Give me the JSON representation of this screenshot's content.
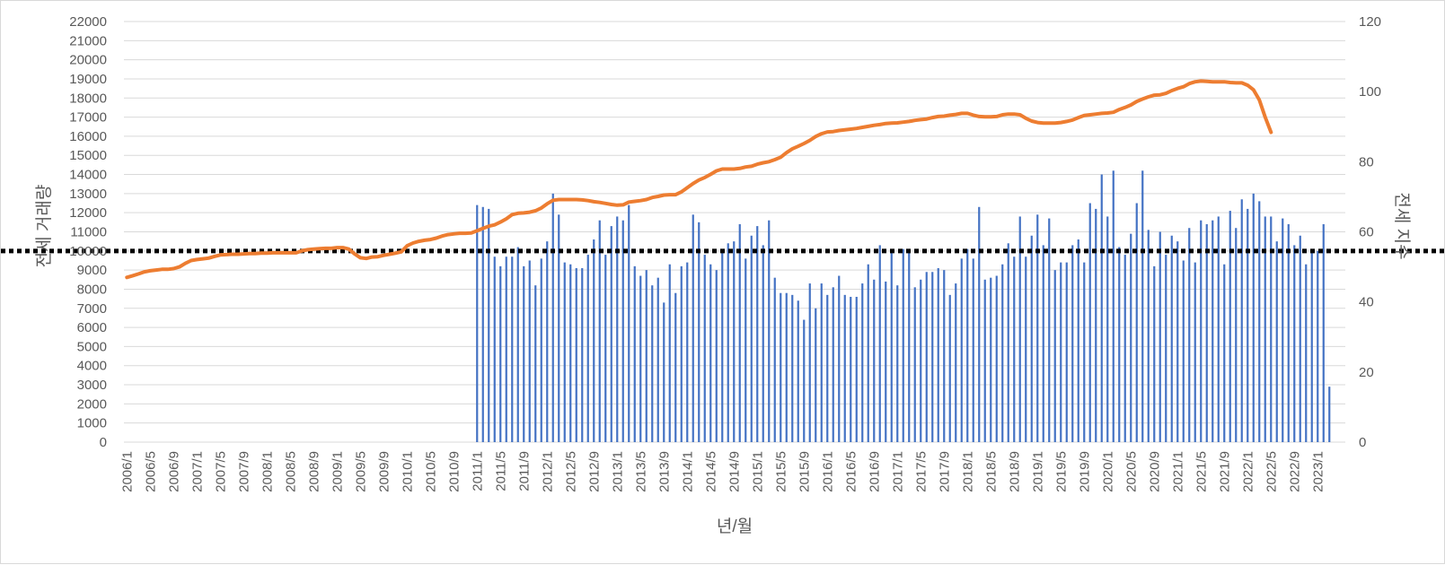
{
  "chart_data": {
    "type": "bar",
    "title": "",
    "xlabel": "년/월",
    "ylabel_left": "전세 거래량",
    "ylabel_right": "전세 지수",
    "ylim_left": [
      0,
      22000
    ],
    "ylim_right": [
      0,
      120
    ],
    "yticks_left": [
      "0",
      "1000",
      "2000",
      "3000",
      "4000",
      "5000",
      "6000",
      "7000",
      "8000",
      "9000",
      "10000",
      "11000",
      "12000",
      "13000",
      "14000",
      "15000",
      "16000",
      "17000",
      "18000",
      "19000",
      "20000",
      "21000",
      "22000"
    ],
    "yticks_right": [
      "0",
      "20",
      "40",
      "60",
      "80",
      "100",
      "120"
    ],
    "x_tick_labels": [
      "2006/1",
      "2006/5",
      "2006/9",
      "2007/1",
      "2007/5",
      "2007/9",
      "2008/1",
      "2008/5",
      "2008/9",
      "2009/1",
      "2009/5",
      "2009/9",
      "2010/1",
      "2010/5",
      "2010/9",
      "2011/1",
      "2011/5",
      "2011/9",
      "2012/1",
      "2012/5",
      "2012/9",
      "2013/1",
      "2013/5",
      "2013/9",
      "2014/1",
      "2014/5",
      "2014/9",
      "2015/1",
      "2015/5",
      "2015/9",
      "2016/1",
      "2016/5",
      "2016/9",
      "2017/1",
      "2017/5",
      "2017/9",
      "2018/1",
      "2018/5",
      "2018/9",
      "2019/1",
      "2019/5",
      "2019/9",
      "2020/1",
      "2020/5",
      "2020/9",
      "2021/1",
      "2021/5",
      "2021/9",
      "2022/1",
      "2022/5",
      "2022/9",
      "2023/1"
    ],
    "first_month": "2006/1",
    "grid": true,
    "reference_line_left": 10000,
    "colors": {
      "bars": "#4472c4",
      "line": "#ed7d31",
      "grid": "#d9d9d9",
      "reference": "#000000"
    },
    "series": [
      {
        "kind": "bar",
        "axis": "left",
        "start": "2011/1",
        "values": [
          12400,
          12300,
          12200,
          9700,
          9200,
          9700,
          9700,
          10200,
          9200,
          9500,
          8200,
          9600,
          10500,
          13000,
          11900,
          9400,
          9300,
          9100,
          9100,
          9800,
          10600,
          11600,
          9800,
          11300,
          11800,
          11600,
          12400,
          9200,
          8700,
          9000,
          8200,
          8600,
          7300,
          9300,
          7800,
          9200,
          9400,
          11900,
          11500,
          9800,
          9300,
          9000,
          9900,
          10400,
          10500,
          11400,
          9600,
          10800,
          11300,
          10300,
          11600,
          8600,
          7800,
          7800,
          7700,
          7400,
          6400,
          8300,
          7000,
          8300,
          7700,
          8100,
          8700,
          7700,
          7600,
          7600,
          8300,
          9300,
          8500,
          10300,
          8400,
          9900,
          8200,
          10100,
          9900,
          8100,
          8500,
          8900,
          8900,
          9100,
          9000,
          7700,
          8300,
          9600,
          10100,
          9600,
          12300,
          8500,
          8600,
          8700,
          9300,
          10400,
          9700,
          11800,
          9700,
          10800,
          11900,
          10300,
          11700,
          9000,
          9400,
          9400,
          10300,
          10600,
          9400,
          12500,
          12200,
          14000,
          11800,
          14200,
          10200,
          9800,
          10900,
          12500,
          14200,
          11100,
          9200,
          11000,
          9800,
          10800,
          10500,
          9500,
          11200,
          9400,
          11600,
          11400,
          11600,
          11800,
          9300,
          12100,
          11200,
          12700,
          12200,
          13000,
          12600,
          11800,
          11800,
          10500,
          11700,
          11400,
          10300,
          10800,
          9300,
          9900,
          10000,
          11400,
          2900
        ]
      },
      {
        "kind": "line",
        "axis": "right",
        "start": "2006/1",
        "values": [
          47,
          47.5,
          48,
          48.6,
          48.9,
          49.1,
          49.3,
          49.3,
          49.5,
          50,
          51,
          51.8,
          52.1,
          52.3,
          52.5,
          53,
          53.4,
          53.5,
          53.6,
          53.6,
          53.7,
          53.8,
          53.8,
          53.9,
          53.9,
          54,
          54,
          54,
          54,
          54,
          54.6,
          54.9,
          55.1,
          55.2,
          55.3,
          55.3,
          55.5,
          55.5,
          55.1,
          53.7,
          52.6,
          52.4,
          52.8,
          52.9,
          53.3,
          53.6,
          53.9,
          54.3,
          56,
          56.8,
          57.3,
          57.6,
          57.8,
          58.2,
          58.8,
          59.2,
          59.4,
          59.6,
          59.6,
          59.7,
          60.3,
          61,
          61.6,
          62,
          62.8,
          63.7,
          64.9,
          65.3,
          65.4,
          65.6,
          66,
          66.8,
          68,
          69,
          69.2,
          69.2,
          69.2,
          69.2,
          69.1,
          68.9,
          68.6,
          68.4,
          68.1,
          67.8,
          67.6,
          67.7,
          68.5,
          68.7,
          68.9,
          69.2,
          69.8,
          70.1,
          70.5,
          70.6,
          70.6,
          71.4,
          72.6,
          73.8,
          74.8,
          75.5,
          76.4,
          77.4,
          77.9,
          77.9,
          77.9,
          78.1,
          78.5,
          78.7,
          79.3,
          79.7,
          80,
          80.6,
          81.3,
          82.6,
          83.7,
          84.4,
          85.2,
          86.1,
          87.2,
          88,
          88.5,
          88.6,
          88.9,
          89.1,
          89.3,
          89.5,
          89.8,
          90.1,
          90.4,
          90.6,
          90.9,
          91,
          91.1,
          91.3,
          91.5,
          91.8,
          92,
          92.2,
          92.6,
          92.9,
          93,
          93.3,
          93.5,
          93.8,
          93.8,
          93.3,
          92.9,
          92.8,
          92.8,
          92.9,
          93.4,
          93.6,
          93.6,
          93.4,
          92.4,
          91.6,
          91.2,
          91,
          91,
          91,
          91.2,
          91.5,
          91.9,
          92.6,
          93.2,
          93.4,
          93.6,
          93.8,
          93.9,
          94.1,
          94.9,
          95.5,
          96.2,
          97.2,
          97.9,
          98.5,
          99,
          99.1,
          99.5,
          100.3,
          100.9,
          101.4,
          102.3,
          102.8,
          103,
          102.9,
          102.8,
          102.8,
          102.8,
          102.6,
          102.5,
          102.5,
          101.8,
          100.5,
          97.6,
          92.7,
          88.4
        ]
      }
    ]
  }
}
